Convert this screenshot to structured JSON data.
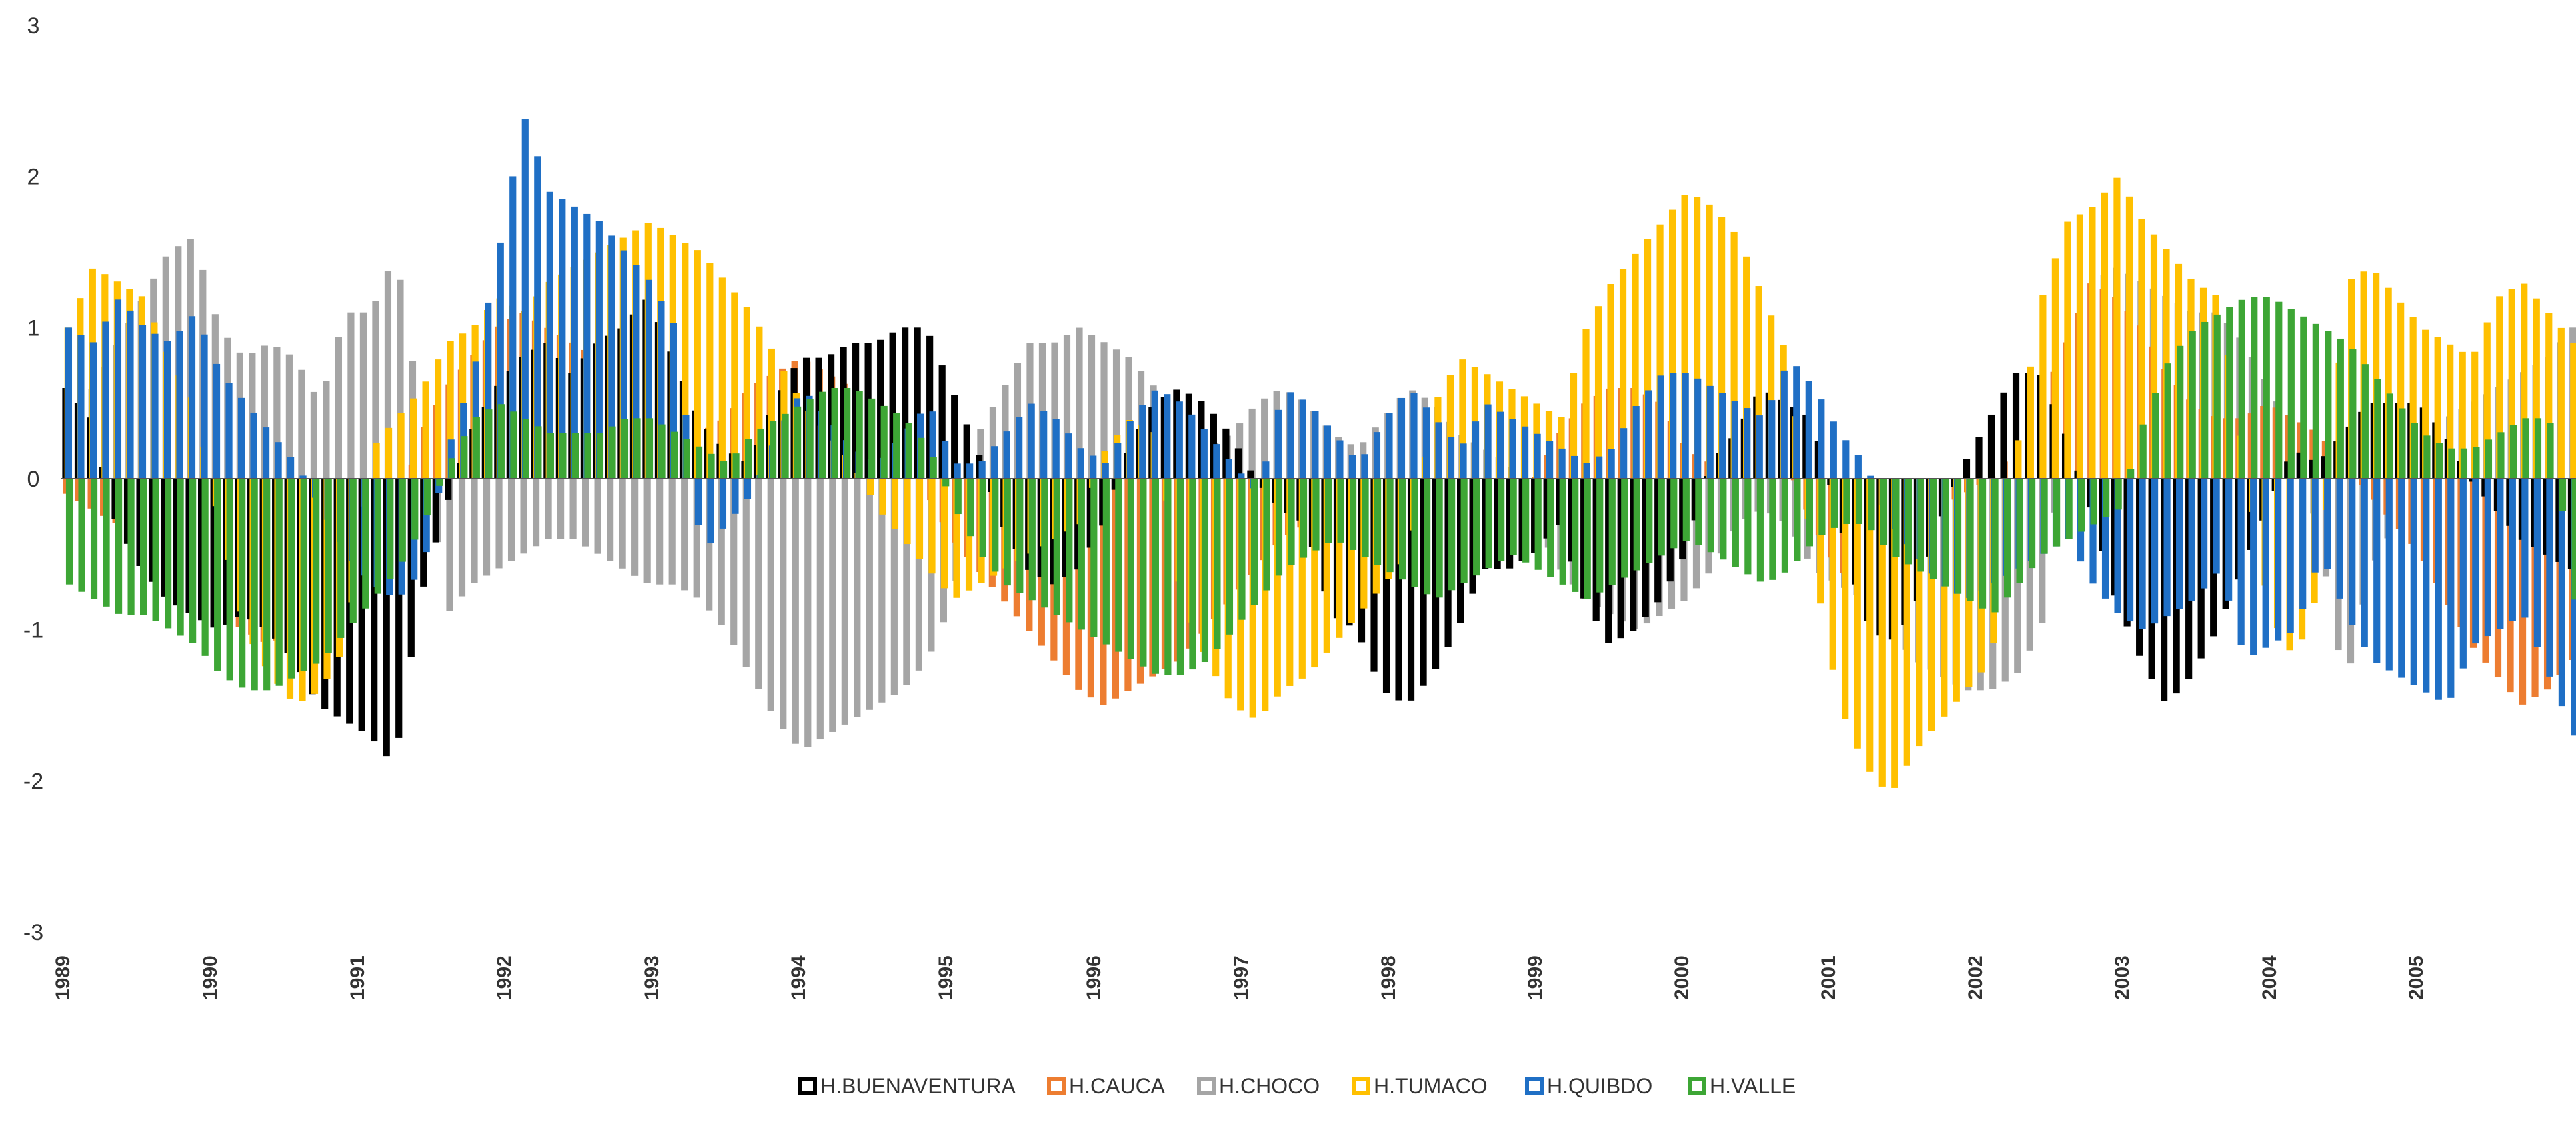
{
  "chart_data": {
    "type": "bar",
    "title": "",
    "xlabel": "",
    "ylabel": "",
    "ylim": [
      -3,
      3
    ],
    "yticks": [
      3,
      2,
      1,
      0,
      -1,
      -2,
      -3
    ],
    "grid": false,
    "legend_position": "bottom-center",
    "x_start": 1989,
    "x_labels": [
      "1989",
      "1990",
      "1991",
      "1992",
      "1993",
      "1994",
      "1995",
      "1996",
      "1997",
      "1998",
      "1999",
      "2000",
      "2001",
      "2002",
      "2003",
      "2004",
      "2005"
    ],
    "series": [
      {
        "name": "H.BUENAVENTURA",
        "color": "#000000",
        "values": [
          0.6,
          0.4,
          -0.3,
          -0.6,
          -0.8,
          -0.9,
          -1.0,
          -0.9,
          -1.0,
          -1.2,
          -1.5,
          -1.6,
          -1.7,
          -1.9,
          -0.8,
          -0.2,
          0.3,
          0.6,
          0.8,
          0.9,
          0.7,
          0.9,
          1.0,
          1.2,
          0.8,
          0.4,
          0.2,
          0.1,
          0.5,
          0.8,
          0.8,
          0.9,
          0.9,
          1.0,
          1.0,
          0.6,
          0.2,
          -0.3,
          -0.6,
          -0.7,
          -0.6,
          -0.3,
          0.2,
          0.5,
          0.6,
          0.5,
          0.3,
          0.0,
          -0.2,
          -0.3,
          -0.9,
          -1.0,
          -1.4,
          -1.5,
          -1.3,
          -1.0,
          -0.6,
          -0.6,
          -0.5,
          -0.3,
          -0.8,
          -1.1,
          -1.0,
          -0.8,
          -0.5,
          0.1,
          0.3,
          0.6,
          0.5,
          0.4,
          -0.2,
          -0.9,
          -1.1,
          -0.9,
          -0.3,
          0.1,
          0.4,
          0.7,
          0.7,
          0.3,
          -0.2,
          -0.8,
          -1.2,
          -1.5,
          -1.3,
          -1.0,
          -0.6,
          -0.2,
          0.2,
          0.1,
          0.3,
          0.5,
          0.5,
          0.5,
          0.3,
          0.0,
          -0.2,
          -0.4,
          -0.5,
          -0.6
        ],
        "fill_to": 204
      },
      {
        "name": "H.CAUCA",
        "color": "#ED7D31",
        "values": [
          -0.1,
          -0.2,
          -0.3,
          -0.5,
          -0.6,
          -0.8,
          -0.9,
          -1.0,
          -1.1,
          -1.0,
          -0.8,
          -0.6,
          -0.4,
          -0.3,
          0.3,
          0.6,
          0.8,
          1.0,
          1.1,
          1.0,
          0.9,
          0.8,
          0.7,
          0.5,
          0.3,
          0.3,
          0.4,
          0.6,
          0.7,
          0.8,
          0.7,
          0.6,
          0.4,
          0.2,
          -0.1,
          -0.4,
          -0.6,
          -0.8,
          -1.0,
          -1.2,
          -1.4,
          -1.5,
          -1.4,
          -1.3,
          -1.2,
          -1.0,
          -0.8,
          -0.6,
          -0.4,
          -0.3,
          -0.2,
          -0.3,
          -0.4,
          -0.5,
          -0.5,
          -0.4,
          -0.3,
          -0.2,
          0.0,
          0.3,
          0.5,
          0.6,
          0.6,
          0.5,
          0.2,
          0.1,
          0.1,
          0.2,
          0.1,
          -0.3,
          -0.6,
          -0.7,
          -0.5,
          -0.3,
          -0.2,
          -0.1,
          0.0,
          0.2,
          0.5,
          0.9,
          1.3,
          1.2,
          1.0,
          0.7,
          0.5,
          0.4,
          0.4,
          0.5,
          0.4,
          0.3,
          0.1,
          -0.1,
          -0.3,
          -0.5,
          -0.8,
          -1.1,
          -1.3,
          -1.5,
          -1.4,
          -1.2
        ],
        "fill_to": 204
      },
      {
        "name": "H.CHOCO",
        "color": "#A5A5A5",
        "values": [
          0.4,
          0.6,
          0.9,
          1.2,
          1.5,
          1.6,
          1.0,
          0.8,
          0.9,
          0.8,
          0.5,
          1.1,
          1.1,
          1.5,
          0.4,
          -0.9,
          -0.7,
          -0.6,
          -0.5,
          -0.4,
          -0.4,
          -0.5,
          -0.6,
          -0.7,
          -0.7,
          -0.8,
          -1.0,
          -1.3,
          -1.6,
          -1.8,
          -1.7,
          -1.6,
          -1.5,
          -1.4,
          -1.2,
          -0.8,
          0.3,
          0.6,
          0.9,
          0.9,
          1.0,
          0.9,
          0.8,
          0.6,
          0.4,
          0.2,
          0.3,
          0.5,
          0.6,
          0.5,
          0.3,
          0.2,
          0.4,
          0.6,
          0.5,
          0.3,
          0.2,
          0.1,
          -0.3,
          -0.6,
          -0.8,
          -0.9,
          -1.0,
          -0.9,
          -0.8,
          -0.6,
          -0.3,
          -0.2,
          -0.3,
          -0.6,
          -0.7,
          -0.8,
          -1.0,
          -1.2,
          -1.3,
          -1.4,
          -1.4,
          -1.3,
          -1.0,
          0.5,
          1.3,
          1.4,
          1.3,
          1.2,
          1.1,
          1.1,
          0.9,
          0.6,
          0.3,
          -0.4,
          -1.4,
          -0.6,
          -0.3,
          0.2,
          0.4,
          0.5,
          0.6,
          0.7,
          0.8,
          1.0
        ],
        "fill_to": 204
      },
      {
        "name": "H.TUMACO",
        "color": "#FFC000",
        "values": [
          1.0,
          1.4,
          1.3,
          1.2,
          0.8,
          0.5,
          -0.3,
          -1.0,
          -1.3,
          -1.5,
          -1.4,
          -1.1,
          0.2,
          0.4,
          0.6,
          0.9,
          1.0,
          1.2,
          1.1,
          1.3,
          1.4,
          1.5,
          1.6,
          1.7,
          1.6,
          1.5,
          1.3,
          1.1,
          0.8,
          0.5,
          0.3,
          0.1,
          -0.2,
          -0.4,
          -0.6,
          -0.8,
          -0.7,
          -0.6,
          -0.5,
          -0.4,
          -0.3,
          0.2,
          0.4,
          0.3,
          -0.8,
          -1.2,
          -1.5,
          -1.6,
          -1.4,
          -1.3,
          -1.1,
          -0.9,
          -0.7,
          -0.5,
          0.5,
          0.8,
          0.7,
          0.6,
          0.5,
          0.4,
          1.0,
          1.3,
          1.5,
          1.7,
          1.9,
          1.8,
          1.6,
          1.2,
          0.8,
          -0.6,
          -1.5,
          -1.9,
          -2.1,
          -1.8,
          -1.6,
          -1.4,
          -1.2,
          0.2,
          1.2,
          1.7,
          1.8,
          2.0,
          1.7,
          1.5,
          1.3,
          1.2,
          0.1,
          -0.9,
          -1.2,
          -0.7,
          1.3,
          1.4,
          1.2,
          1.0,
          0.9,
          0.8,
          1.2,
          1.3,
          1.1,
          0.9
        ],
        "fill_to": 204
      },
      {
        "name": "H.QUIBDO",
        "color": "#1F6FC5",
        "values": [
          1.0,
          0.9,
          1.2,
          1.0,
          0.9,
          1.1,
          0.7,
          0.5,
          0.3,
          0.1,
          -0.2,
          -0.5,
          -0.7,
          -0.8,
          -0.6,
          0.2,
          0.7,
          1.5,
          2.4,
          1.9,
          1.8,
          1.7,
          1.5,
          1.3,
          1.0,
          -0.5,
          -0.3,
          -0.1,
          0.3,
          0.6,
          0.4,
          0.2,
          0.1,
          0.3,
          0.5,
          0.1,
          0.1,
          0.3,
          0.5,
          0.4,
          0.2,
          0.1,
          0.4,
          0.6,
          0.5,
          0.3,
          0.1,
          -0.1,
          0.6,
          0.5,
          0.3,
          0.1,
          0.4,
          0.6,
          0.4,
          0.2,
          0.5,
          0.4,
          0.3,
          0.2,
          0.1,
          0.2,
          0.5,
          0.7,
          0.7,
          0.6,
          0.5,
          0.4,
          0.8,
          0.6,
          0.3,
          0.1,
          -0.3,
          -0.5,
          -0.7,
          -0.8,
          -0.7,
          -0.6,
          -0.5,
          -0.4,
          -0.7,
          -0.9,
          -1.0,
          -0.9,
          -0.8,
          -0.6,
          -1.2,
          -1.1,
          -1.0,
          -0.5,
          -0.9,
          -1.2,
          -1.3,
          -1.4,
          -1.5,
          -1.1,
          -1.0,
          -0.9,
          -1.3,
          -1.7
        ],
        "fill_to": 204
      },
      {
        "name": "H.VALLE",
        "color": "#3DA635",
        "values": [
          -0.7,
          -0.8,
          -0.9,
          -0.9,
          -1.0,
          -1.1,
          -1.3,
          -1.4,
          -1.4,
          -1.3,
          -1.2,
          -1.0,
          -0.8,
          -0.6,
          -0.3,
          0.1,
          0.4,
          0.5,
          0.4,
          0.3,
          0.3,
          0.3,
          0.4,
          0.4,
          0.3,
          0.2,
          0.1,
          0.3,
          0.4,
          0.5,
          0.6,
          0.6,
          0.5,
          0.4,
          0.2,
          -0.2,
          -0.5,
          -0.7,
          -0.8,
          -0.9,
          -1.0,
          -1.1,
          -1.2,
          -1.3,
          -1.3,
          -1.2,
          -1.0,
          -0.8,
          -0.6,
          -0.5,
          -0.4,
          -0.5,
          -0.6,
          -0.7,
          -0.8,
          -0.7,
          -0.6,
          -0.5,
          -0.6,
          -0.7,
          -0.8,
          -0.7,
          -0.6,
          -0.5,
          -0.4,
          -0.5,
          -0.6,
          -0.7,
          -0.6,
          -0.4,
          -0.3,
          -0.3,
          -0.5,
          -0.6,
          -0.7,
          -0.8,
          -0.9,
          -0.7,
          -0.5,
          -0.4,
          -0.3,
          -0.2,
          0.4,
          0.8,
          1.0,
          1.1,
          1.2,
          1.2,
          1.1,
          1.0,
          0.9,
          0.7,
          0.5,
          0.3,
          0.2,
          0.2,
          0.3,
          0.4,
          0.4,
          -0.8
        ],
        "fill_to": 204
      }
    ]
  }
}
